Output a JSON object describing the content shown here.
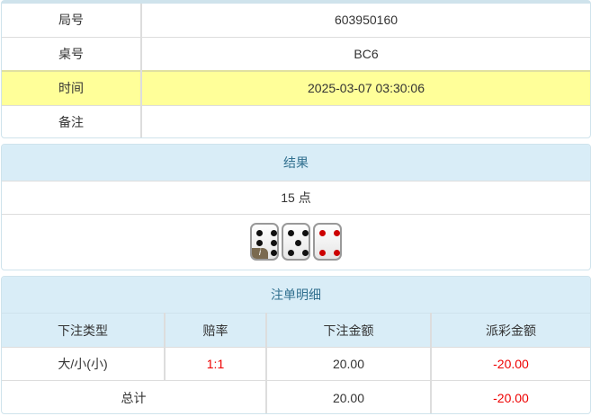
{
  "info": {
    "rows": [
      {
        "label": "局号",
        "value": "603950160"
      },
      {
        "label": "桌号",
        "value": "BC6"
      },
      {
        "label": "时间",
        "value": "2025-03-07 03:30:06"
      },
      {
        "label": "备注",
        "value": ""
      }
    ]
  },
  "result": {
    "title": "结果",
    "points": "15 点",
    "dice": [
      6,
      5,
      4
    ],
    "info_badge": "i"
  },
  "bets": {
    "title": "注单明细",
    "columns": [
      "下注类型",
      "赔率",
      "下注金额",
      "派彩金额"
    ],
    "rows": [
      {
        "type": "大/小(小)",
        "odds": "1:1",
        "amount": "20.00",
        "payout": "-20.00"
      }
    ],
    "total": {
      "label": "总计",
      "amount": "20.00",
      "payout": "-20.00"
    }
  },
  "colors": {
    "header_bg": "#d9edf7",
    "highlight": "#ffff99",
    "negative": "#e00000"
  }
}
